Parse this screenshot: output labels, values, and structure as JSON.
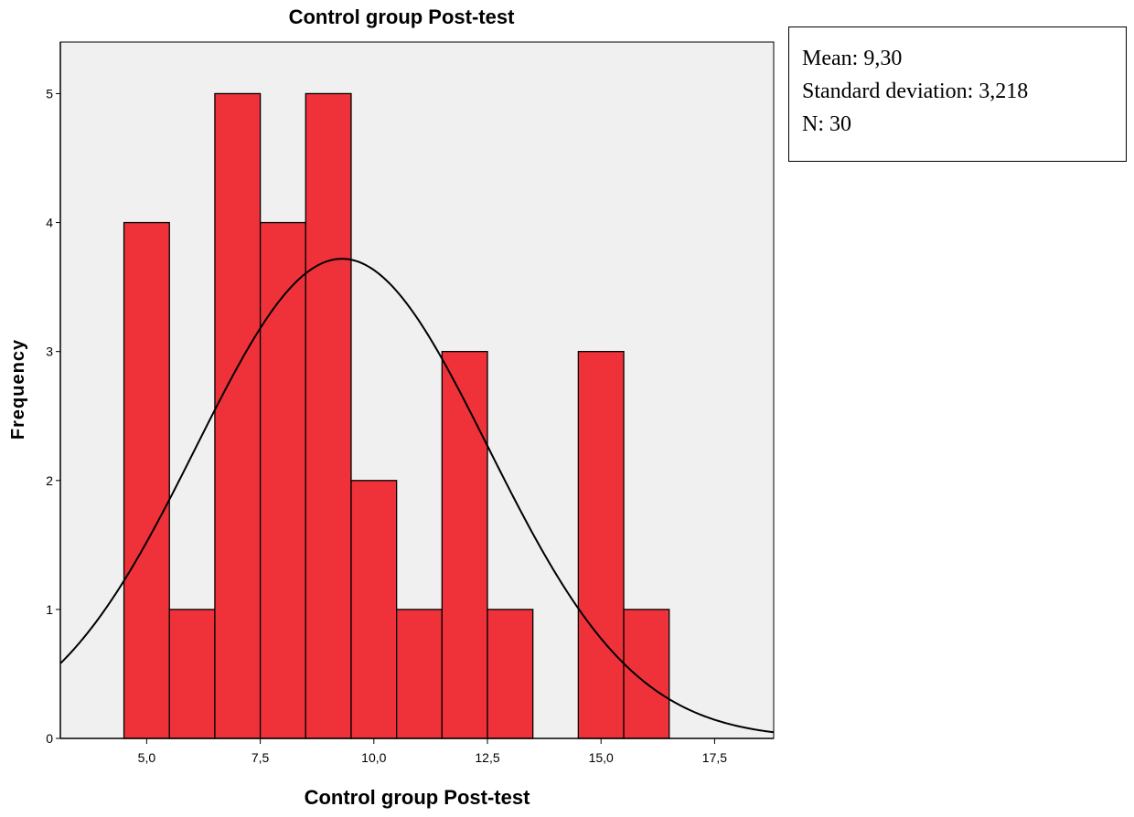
{
  "chart_data": {
    "type": "bar",
    "title": "Control group Post-test",
    "xlabel": "Control group Post-test",
    "ylabel": "Frequency",
    "bin_width": 1.0,
    "bins": [
      {
        "start": 4.5,
        "end": 5.5,
        "value": 4
      },
      {
        "start": 5.5,
        "end": 6.5,
        "value": 1
      },
      {
        "start": 6.5,
        "end": 7.5,
        "value": 5
      },
      {
        "start": 7.5,
        "end": 8.5,
        "value": 4
      },
      {
        "start": 8.5,
        "end": 9.5,
        "value": 5
      },
      {
        "start": 9.5,
        "end": 10.5,
        "value": 2
      },
      {
        "start": 10.5,
        "end": 11.5,
        "value": 1
      },
      {
        "start": 11.5,
        "end": 12.5,
        "value": 3
      },
      {
        "start": 12.5,
        "end": 13.5,
        "value": 1
      },
      {
        "start": 14.5,
        "end": 15.5,
        "value": 3
      },
      {
        "start": 15.5,
        "end": 16.5,
        "value": 1
      }
    ],
    "xlim": [
      3.1,
      18.8
    ],
    "ylim": [
      0,
      5.4
    ],
    "x_ticks": [
      5.0,
      7.5,
      10.0,
      12.5,
      15.0,
      17.5
    ],
    "x_tick_labels": [
      "5,0",
      "7,5",
      "10,0",
      "12,5",
      "15,0",
      "17,5"
    ],
    "y_ticks": [
      0,
      1,
      2,
      3,
      4,
      5
    ],
    "y_tick_labels": [
      "0",
      "1",
      "2",
      "3",
      "4",
      "5"
    ],
    "normal_curve": {
      "mean": 9.3,
      "sd": 3.218,
      "n": 30
    },
    "grid": false,
    "colors": {
      "bar_fill": "#EF323A",
      "bar_stroke": "#000000",
      "plot_background": "#F0F0F0",
      "curve": "#000000"
    }
  },
  "stats": {
    "mean": "Mean: 9,30",
    "sd": "Standard deviation: 3,218",
    "n": "N: 30"
  }
}
